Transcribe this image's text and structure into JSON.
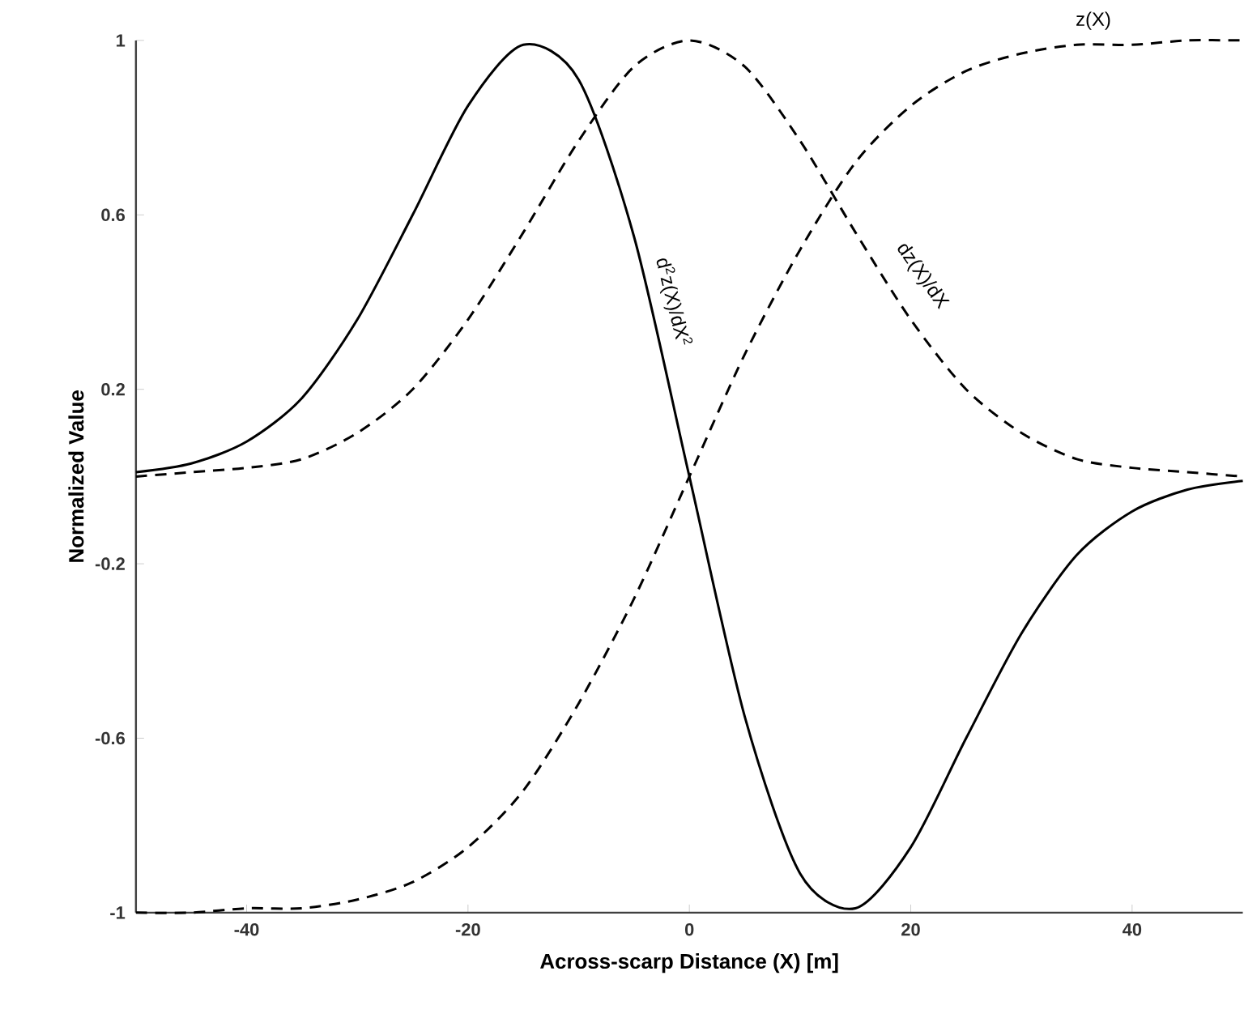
{
  "chart_data": {
    "type": "line",
    "xlabel": "Across-scarp Distance (X) [m]",
    "ylabel": "Normalized Value",
    "x": [
      -50,
      -45,
      -40,
      -35,
      -30,
      -25,
      -20,
      -15,
      -10,
      -5,
      0,
      5,
      10,
      15,
      20,
      25,
      30,
      35,
      40,
      45,
      50
    ],
    "series": [
      {
        "name": "d$^{2}$z(X)/dX$^{2}$",
        "color": "#000000",
        "line_style": "solid",
        "values": [
          0.01,
          0.03,
          0.08,
          0.18,
          0.36,
          0.6,
          0.85,
          0.99,
          0.91,
          0.55,
          0,
          -0.55,
          -0.91,
          -0.99,
          -0.85,
          -0.6,
          -0.36,
          -0.18,
          -0.08,
          -0.03,
          -0.01
        ]
      },
      {
        "name": "dz(X)/dX",
        "color": "#000000",
        "line_style": "dashed",
        "values": [
          0,
          0.01,
          0.02,
          0.04,
          0.1,
          0.2,
          0.36,
          0.56,
          0.77,
          0.94,
          1,
          0.94,
          0.77,
          0.56,
          0.36,
          0.2,
          0.1,
          0.04,
          0.02,
          0.01,
          0
        ]
      },
      {
        "name": "z(X)",
        "color": "#000000",
        "line_style": "dashed",
        "values": [
          -1,
          -1,
          -0.99,
          -0.99,
          -0.97,
          -0.93,
          -0.85,
          -0.72,
          -0.52,
          -0.28,
          0,
          0.28,
          0.52,
          0.72,
          0.85,
          0.93,
          0.97,
          0.99,
          0.99,
          1,
          1
        ]
      }
    ],
    "xlim": [
      -50,
      50
    ],
    "ylim": [
      -1,
      1
    ],
    "xticks": [
      -40,
      -20,
      0,
      20,
      40
    ],
    "yticks": [
      -1,
      -0.6,
      -0.2,
      0.2,
      0.6,
      1
    ]
  }
}
